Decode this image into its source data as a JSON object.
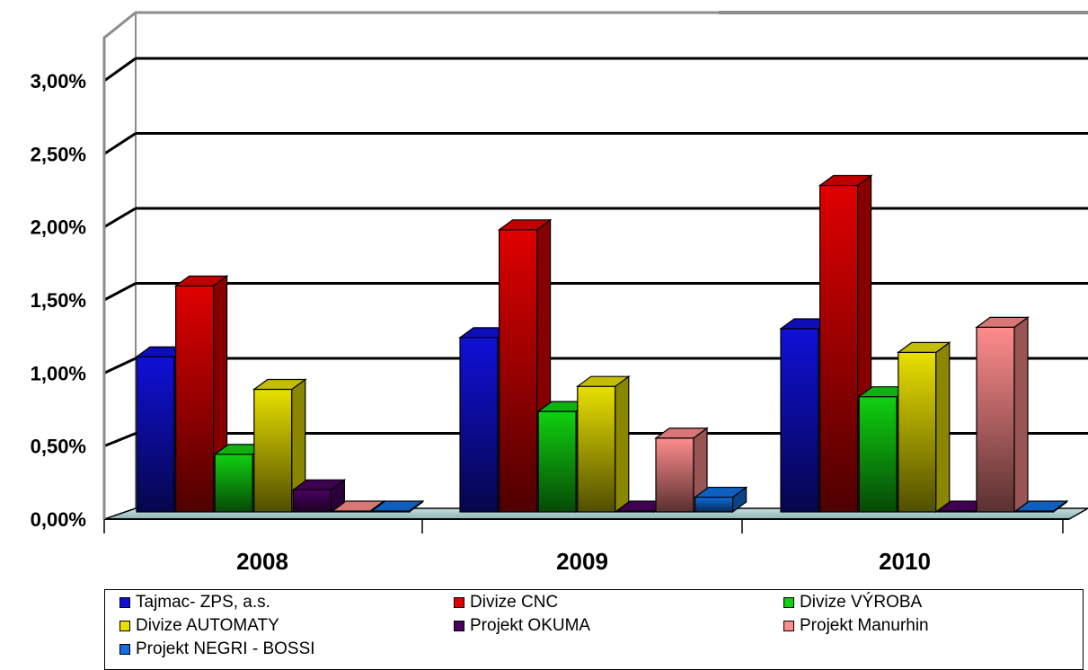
{
  "chart_data": {
    "type": "bar",
    "categories": [
      "2008",
      "2009",
      "2010"
    ],
    "series": [
      {
        "name": "Tajmac- ZPS, a.s.",
        "color": "#1010d8",
        "values": [
          1.05,
          1.18,
          1.24
        ]
      },
      {
        "name": "Divize CNC",
        "color": "#e00000",
        "values": [
          1.53,
          1.91,
          2.21
        ]
      },
      {
        "name": "Divize VÝROBA",
        "color": "#10d010",
        "values": [
          0.39,
          0.68,
          0.78
        ]
      },
      {
        "name": "Divize  AUTOMATY",
        "color": "#e8e000",
        "values": [
          0.83,
          0.85,
          1.08
        ]
      },
      {
        "name": "Projekt OKUMA",
        "color": "#4a0060",
        "values": [
          0.15,
          0.0,
          0.0
        ]
      },
      {
        "name": "Projekt Manurhin",
        "color": "#ff8c8c",
        "values": [
          0.0,
          0.5,
          1.25
        ]
      },
      {
        "name": "Projekt NEGRI - BOSSI",
        "color": "#1070e0",
        "values": [
          0.0,
          0.1,
          0.0
        ]
      }
    ],
    "ylim": [
      0,
      3.0
    ],
    "yticks": [
      0,
      0.5,
      1.0,
      1.5,
      2.0,
      2.5,
      3.0
    ],
    "ytick_labels": [
      "0,00%",
      "0,50%",
      "1,00%",
      "1,50%",
      "2,00%",
      "2,50%",
      "3,00%"
    ],
    "grid": true,
    "legend_position": "bottom",
    "style": "3d-clustered-column"
  }
}
